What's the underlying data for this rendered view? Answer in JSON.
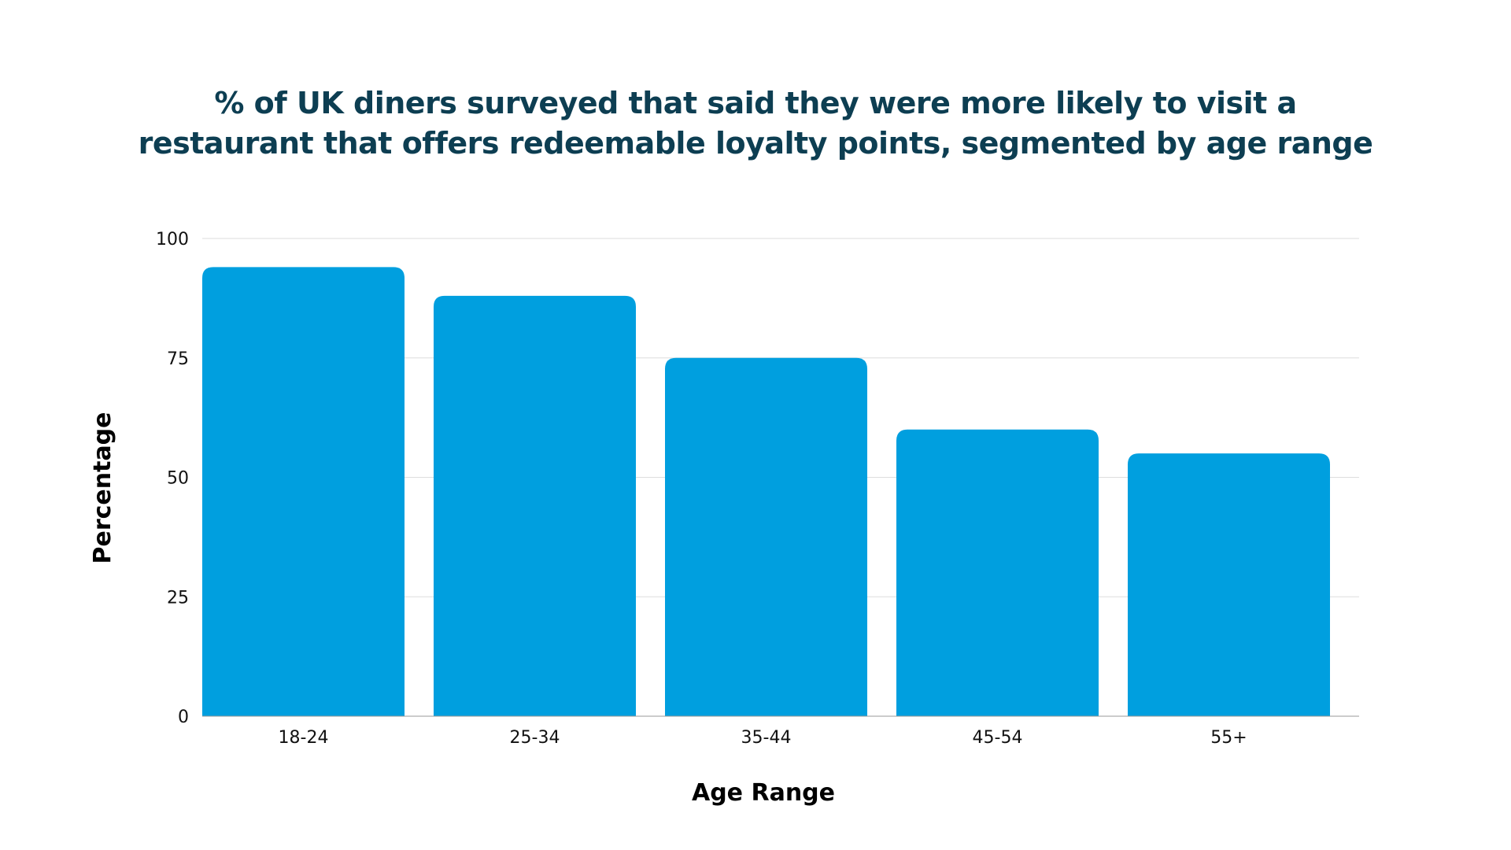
{
  "chart_data": {
    "type": "bar",
    "title_lines": [
      "% of UK diners surveyed that said they were more likely to visit a",
      "restaurant that offers redeemable loyalty points, segmented by age range"
    ],
    "xlabel": "Age Range",
    "ylabel": "Percentage",
    "categories": [
      "18-24",
      "25-34",
      "35-44",
      "45-54",
      "55+"
    ],
    "values": [
      94,
      88,
      75,
      60,
      55
    ],
    "ylim": [
      0,
      100
    ],
    "yticks": [
      "0",
      "25",
      "50",
      "75",
      "100"
    ],
    "grid": true,
    "legend": "none",
    "colors": {
      "bar": "#009fdf",
      "title": "#0d3e52",
      "grid": "#dddddd",
      "axis": "#999999"
    }
  }
}
